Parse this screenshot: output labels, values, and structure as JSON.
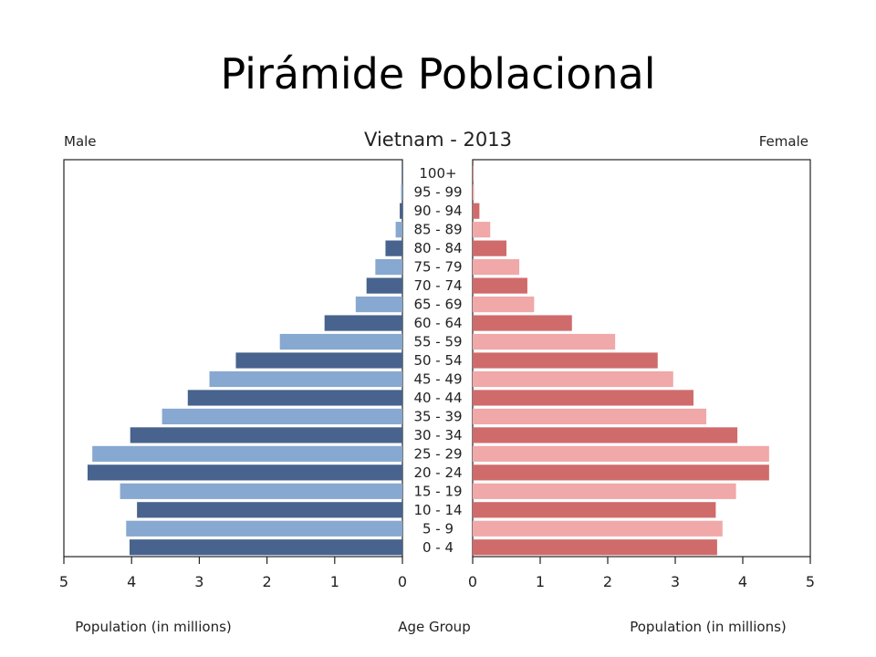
{
  "slide": {
    "title": "Pirámide Poblacional"
  },
  "chart_data": {
    "type": "bar",
    "orientation": "horizontal",
    "title": "Vietnam - 2013",
    "left_label": "Male",
    "right_label": "Female",
    "xlabel_left": "Population (in millions)",
    "xlabel_center": "Age Group",
    "xlabel_right": "Population (in millions)",
    "xlim": [
      0,
      5
    ],
    "x_ticks": [
      "0",
      "1",
      "2",
      "3",
      "4",
      "5"
    ],
    "categories": [
      "100+",
      "95 - 99",
      "90 - 94",
      "85 - 89",
      "80 - 84",
      "75 - 79",
      "70 - 74",
      "65 - 69",
      "60 - 64",
      "55 - 59",
      "50 - 54",
      "45 - 49",
      "40 - 44",
      "35 - 39",
      "30 - 34",
      "25 - 29",
      "20 - 24",
      "15 - 19",
      "10 - 14",
      "5 - 9",
      "0 - 4"
    ],
    "series": [
      {
        "name": "Male",
        "values": [
          0.01,
          0.02,
          0.04,
          0.1,
          0.25,
          0.4,
          0.53,
          0.69,
          1.15,
          1.81,
          2.46,
          2.85,
          3.17,
          3.55,
          4.02,
          4.58,
          4.65,
          4.17,
          3.92,
          4.08,
          4.03
        ]
      },
      {
        "name": "Female",
        "values": [
          0.01,
          0.02,
          0.1,
          0.26,
          0.5,
          0.69,
          0.81,
          0.91,
          1.47,
          2.11,
          2.74,
          2.97,
          3.27,
          3.46,
          3.92,
          4.39,
          4.39,
          3.9,
          3.6,
          3.7,
          3.62
        ]
      }
    ],
    "colors": {
      "male_dark": "#47638e",
      "male_light": "#87a8d0",
      "female_dark": "#d06b6b",
      "female_light": "#f0a8a8"
    }
  }
}
